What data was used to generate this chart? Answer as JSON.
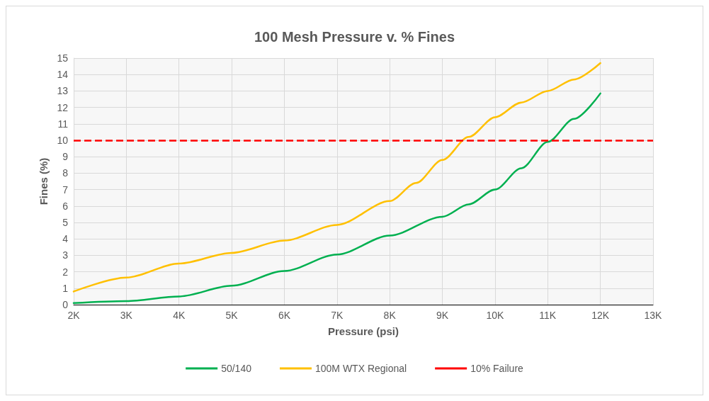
{
  "chart_data": {
    "type": "line",
    "title": "100 Mesh Pressure v. % Fines",
    "xlabel": "Pressure (psi)",
    "ylabel": "Fines (%)",
    "series": [
      {
        "name": "50/140",
        "color": "#00b050",
        "x": [
          2000,
          3000,
          4000,
          5000,
          6000,
          7000,
          8000,
          9000,
          9500,
          10000,
          10500,
          11000,
          11500,
          12000
        ],
        "values": [
          0.1,
          0.22,
          0.5,
          1.15,
          2.05,
          3.05,
          4.2,
          5.35,
          6.1,
          7.0,
          8.3,
          9.9,
          11.3,
          12.85
        ]
      },
      {
        "name": "100M WTX Regional",
        "color": "#ffc000",
        "x": [
          2000,
          3000,
          4000,
          5000,
          6000,
          7000,
          8000,
          8500,
          9000,
          9500,
          10000,
          10500,
          11000,
          11500,
          12000
        ],
        "values": [
          0.8,
          1.65,
          2.5,
          3.15,
          3.9,
          4.85,
          6.3,
          7.4,
          8.8,
          10.2,
          11.4,
          12.3,
          13.0,
          13.7,
          14.7
        ]
      }
    ],
    "ref_lines": [
      {
        "axis": "y",
        "value": 10,
        "label": "10% Failure",
        "color": "#ff0000",
        "line_style": "dashed"
      }
    ],
    "xlim": [
      2000,
      13000
    ],
    "xticks": [
      {
        "value": 2000,
        "label": "2K"
      },
      {
        "value": 3000,
        "label": "3K"
      },
      {
        "value": 4000,
        "label": "4K"
      },
      {
        "value": 5000,
        "label": "5K"
      },
      {
        "value": 6000,
        "label": "6K"
      },
      {
        "value": 7000,
        "label": "7K"
      },
      {
        "value": 8000,
        "label": "8K"
      },
      {
        "value": 9000,
        "label": "9K"
      },
      {
        "value": 10000,
        "label": "10K"
      },
      {
        "value": 11000,
        "label": "11K"
      },
      {
        "value": 12000,
        "label": "12K"
      },
      {
        "value": 13000,
        "label": "13K"
      }
    ],
    "ylim": [
      0,
      15
    ],
    "yticks": [
      0,
      1,
      2,
      3,
      4,
      5,
      6,
      7,
      8,
      9,
      10,
      11,
      12,
      13,
      14,
      15
    ],
    "grid": true,
    "legend": "bottom",
    "marker": "none",
    "line_style": "solid"
  }
}
